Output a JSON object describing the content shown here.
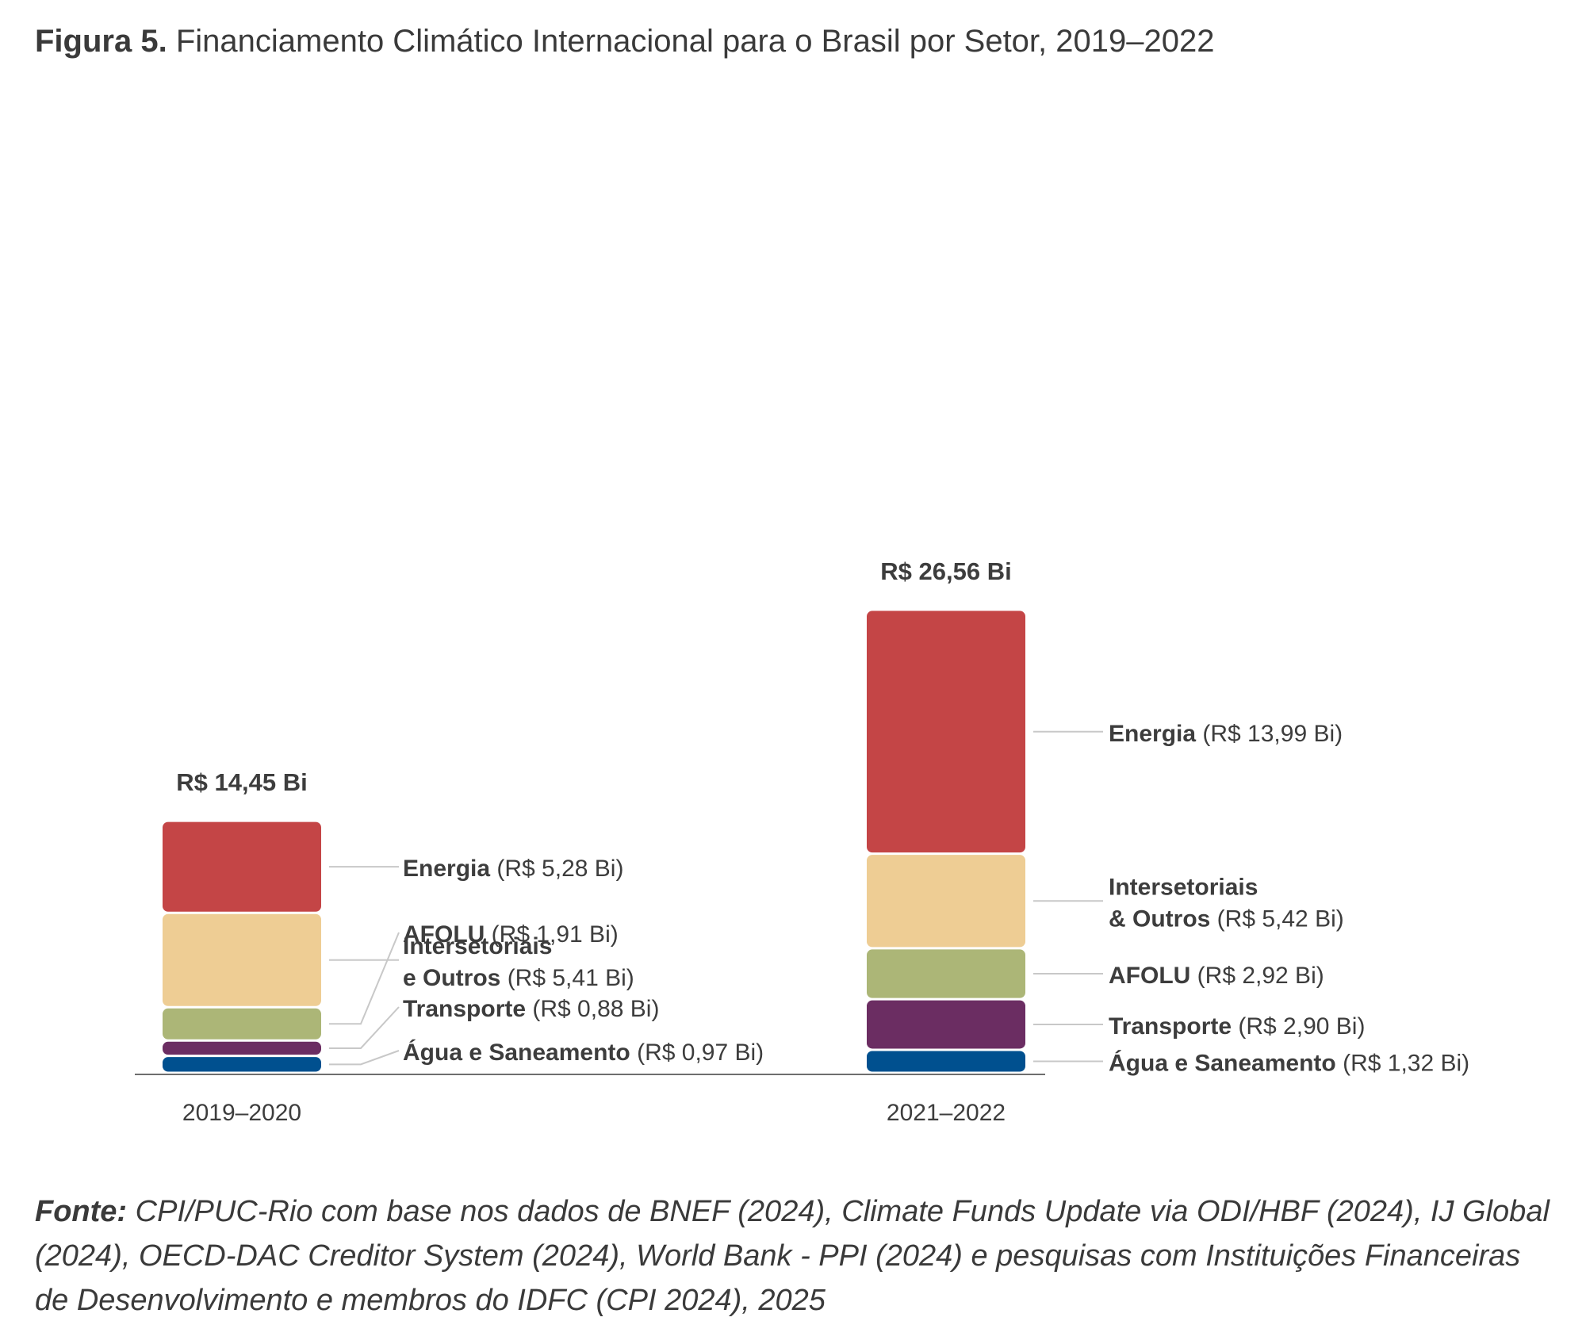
{
  "title": {
    "label": "Figura 5.",
    "text": "Financiamento Climático Internacional para o Brasil por Setor, 2019–2022"
  },
  "chart_data": {
    "type": "bar",
    "stacked": true,
    "categories": [
      "2019–2020",
      "2021–2022"
    ],
    "totals": [
      "R$ 14,45 Bi",
      "R$ 26,56 Bi"
    ],
    "total_values": [
      14.45,
      26.56
    ],
    "grid": false,
    "legend": "direct labels to the right of each bar",
    "series": [
      {
        "name": "Água e Saneamento",
        "color": "#00508f",
        "values": [
          0.97,
          1.32
        ],
        "labels": [
          {
            "bold": [
              "Água e Saneamento"
            ],
            "value": "(R$ 0,97 Bi)"
          },
          {
            "bold": [
              "Água e Saneamento"
            ],
            "value": "(R$ 1,32 Bi)"
          }
        ]
      },
      {
        "name": "Transporte",
        "color": "#6b2d62",
        "values": [
          0.88,
          2.9
        ],
        "labels": [
          {
            "bold": [
              "Transporte"
            ],
            "value": "(R$ 0,88 Bi)"
          },
          {
            "bold": [
              "Transporte"
            ],
            "value": "(R$ 2,90 Bi)"
          }
        ]
      },
      {
        "name": "AFOLU",
        "color": "#acb677",
        "values": [
          1.91,
          2.92
        ],
        "labels": [
          {
            "bold": [
              "AFOLU"
            ],
            "value": "(R$ 1,91 Bi)"
          },
          {
            "bold": [
              "AFOLU"
            ],
            "value": "(R$ 2,92 Bi)"
          }
        ]
      },
      {
        "name": "Intersetoriais e Outros",
        "color": "#eecd94",
        "values": [
          5.41,
          5.42
        ],
        "labels": [
          {
            "bold": [
              "Intersetoriais",
              "e Outros"
            ],
            "value": "(R$ 5,41 Bi)"
          },
          {
            "bold": [
              "Intersetoriais",
              "& Outros"
            ],
            "value": "(R$ 5,42 Bi)"
          }
        ]
      },
      {
        "name": "Energia",
        "color": "#c44546",
        "values": [
          5.28,
          13.99
        ],
        "labels": [
          {
            "bold": [
              "Energia"
            ],
            "value": "(R$ 5,28 Bi)"
          },
          {
            "bold": [
              "Energia"
            ],
            "value": "(R$ 13,99 Bi)"
          }
        ]
      }
    ]
  },
  "source": {
    "label": "Fonte:",
    "text": "CPI/PUC-Rio com base nos dados de BNEF (2024), Climate Funds Update via ODI/HBF (2024), IJ Global (2024), OECD-DAC Creditor System (2024), World Bank - PPI (2024) e pesquisas com Instituições Financeiras de Desenvolvimento e membros do IDFC (CPI 2024), 2025"
  }
}
